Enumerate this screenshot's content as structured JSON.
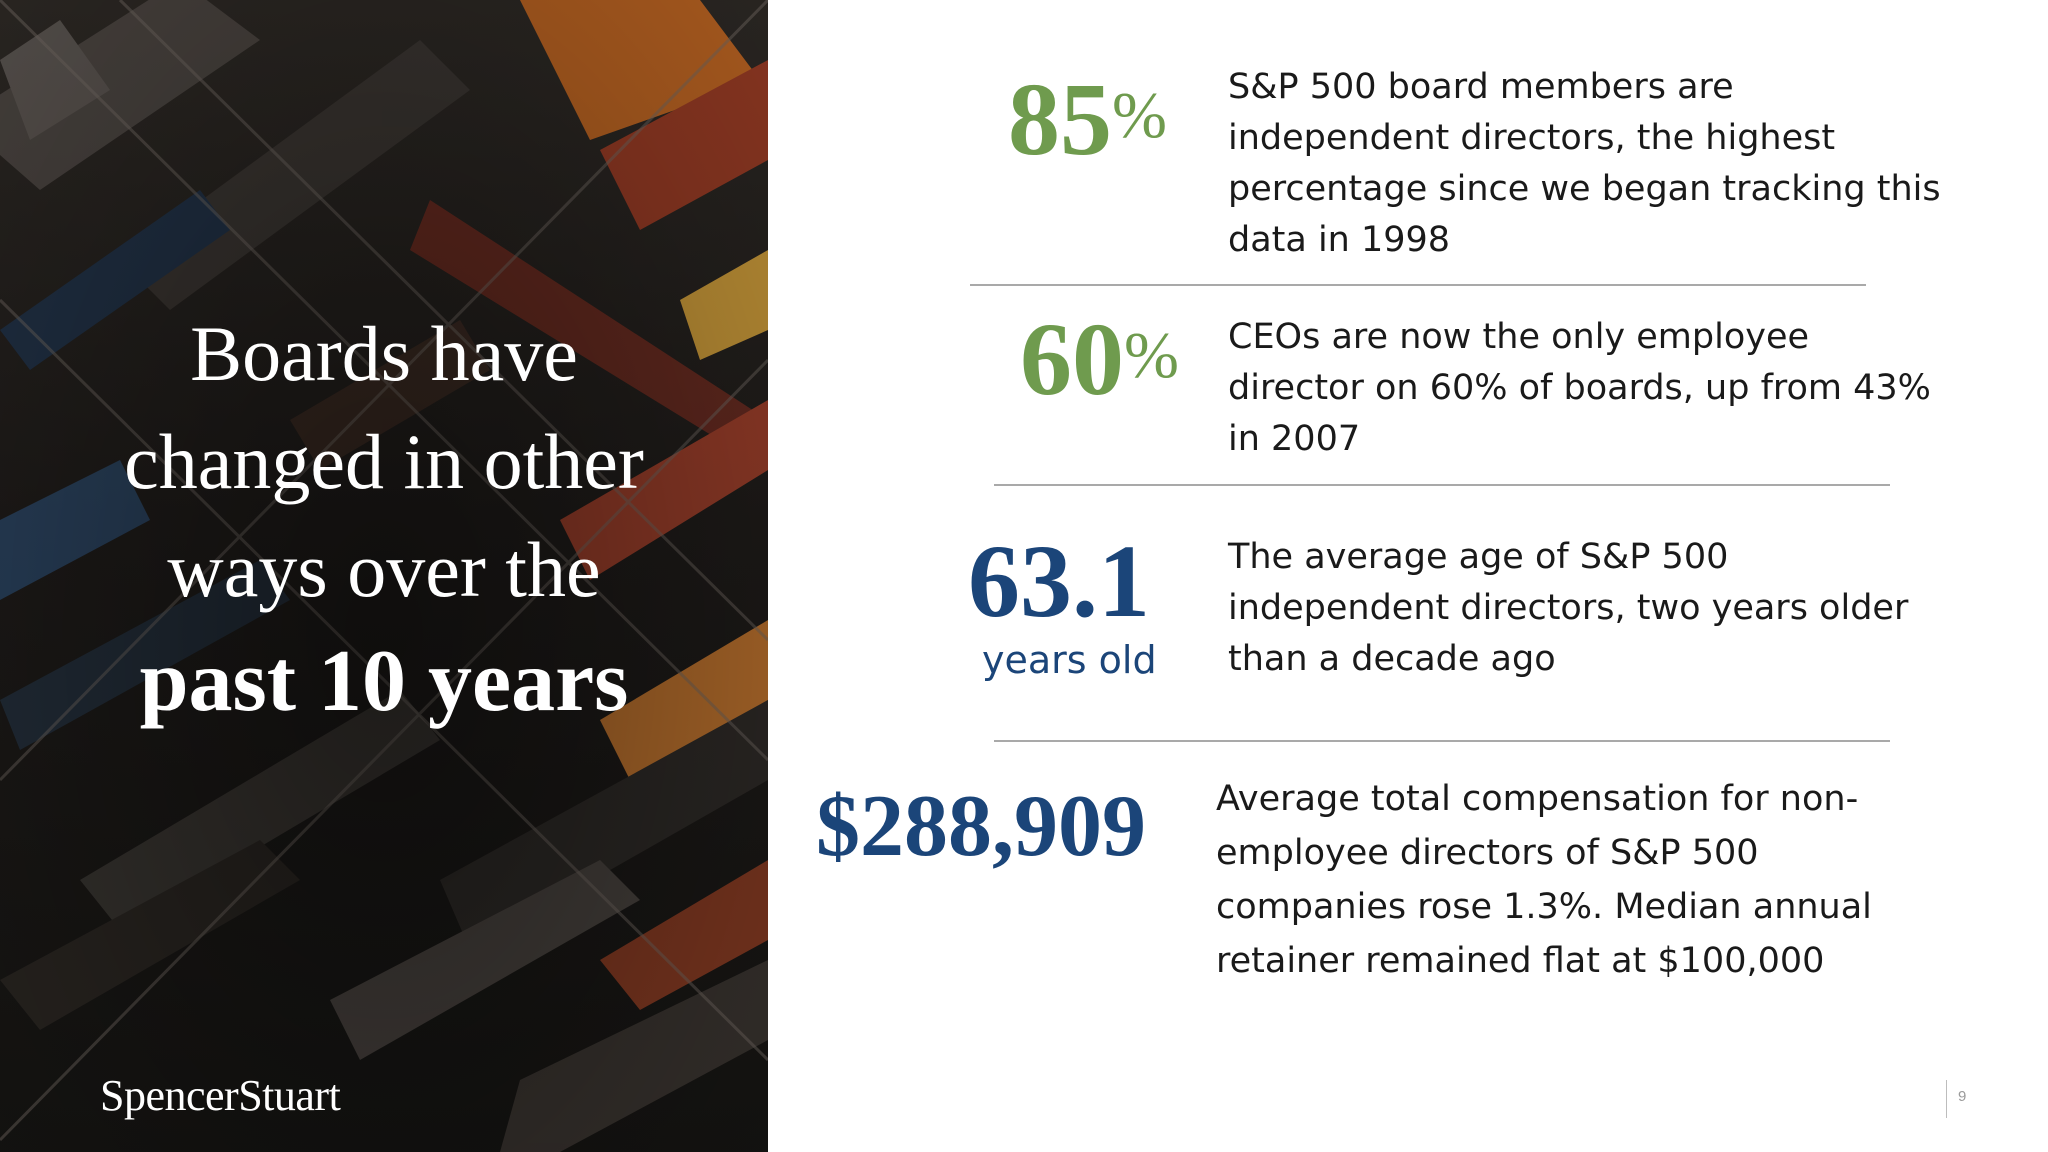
{
  "headline": {
    "line1": "Boards have",
    "line2": "changed in other",
    "line3": "ways over the",
    "line4": "past 10 years"
  },
  "brand": "SpencerStuart",
  "stats": [
    {
      "value": "85",
      "suffix": "%",
      "color": "#6f9b4e",
      "text": [
        "S&P 500 board members are",
        "independent directors, the highest",
        "percentage since we began tracking this",
        "data in 1998"
      ]
    },
    {
      "value": "60",
      "suffix": "%",
      "color": "#6f9b4e",
      "text": [
        "CEOs are now the only employee",
        "director on 60% of boards, up from 43%",
        "in 2007"
      ]
    },
    {
      "value": "63.1",
      "unit": "years old",
      "color": "#1b4579",
      "text": [
        "The average age of S&P 500",
        "independent directors, two years older",
        "than a decade ago"
      ]
    },
    {
      "value": "$288,909",
      "color": "#1b4579",
      "text": [
        "Average total compensation for non-",
        "employee directors of S&P 500",
        "companies rose 1.3%.  Median annual",
        "retainer remained flat at $100,000"
      ]
    }
  ],
  "page_number": "9"
}
